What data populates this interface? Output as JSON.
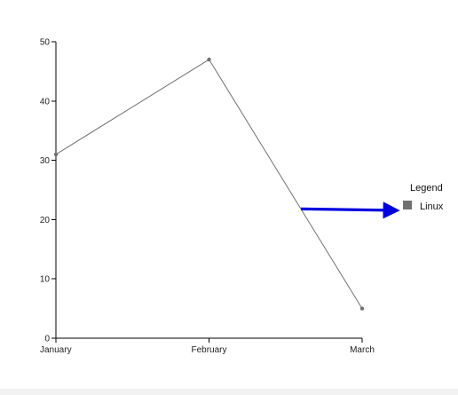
{
  "chart_data": {
    "type": "line",
    "categories": [
      "January",
      "February",
      "March"
    ],
    "series": [
      {
        "name": "Linux",
        "values": [
          31,
          47,
          5
        ],
        "color": "#707070"
      }
    ],
    "y_ticks": [
      "0",
      "10",
      "20",
      "30",
      "40",
      "50"
    ],
    "ylim": [
      0,
      50
    ],
    "grid": false,
    "legend": {
      "title": "Legend",
      "placement": "right"
    },
    "annotation": {
      "type": "arrow",
      "color": "#0000e0",
      "description": "blue arrow pointing from the falling segment of the line toward the Linux legend entry"
    }
  }
}
